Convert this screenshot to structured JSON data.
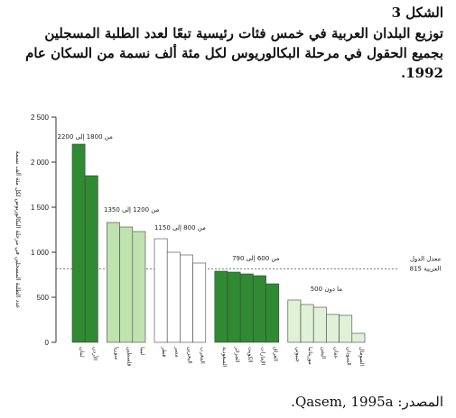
{
  "caption": {
    "figure_label": "الشكل 3",
    "line1": "توزيع البلدان العربية في خمس فئات رئيسية تبعًا لعدد الطلبة المسجلين",
    "line2": "بجميع الحقول في مرحلة البكالوريوس لكل مئة ألف نسمة من السكان عام",
    "line3": "1992."
  },
  "source": "المصدر: Qasem, 1995a.",
  "colors": {
    "dark_green": "#2f8a32",
    "light_green": "#bfe3ae",
    "pale_green": "#dff1d6",
    "white": "#ffffff",
    "reference_line": "#555555"
  },
  "chart_data": {
    "type": "bar",
    "ylabel": "عدد الطلبة المسجلين في مرحلة البكالوريوس لكل مئة ألف نسمة",
    "ylim": [
      0,
      2500
    ],
    "yticks": [
      0,
      500,
      1000,
      1500,
      2000,
      2500
    ],
    "ytick_labels": [
      "0",
      "500",
      "1 000",
      "1 500",
      "2 000",
      "2 500"
    ],
    "reference": {
      "value": 815,
      "label_line1": "معدل الدول",
      "label_line2": "العربية 815"
    },
    "groups": [
      {
        "label": "من 1800 إلى 2200",
        "fill": "dark_green",
        "categories": [
          "لبنان",
          "الأردن"
        ],
        "values": [
          2200,
          1850
        ]
      },
      {
        "label": "من 1200 إلى 1350",
        "fill": "light_green",
        "categories": [
          "سوريا",
          "فلسطين",
          "ليبيا"
        ],
        "values": [
          1330,
          1280,
          1230
        ]
      },
      {
        "label": "من 800 إلى 1150",
        "fill": "white",
        "categories": [
          "قطر",
          "مصر",
          "البحرين",
          "المغرب"
        ],
        "values": [
          1150,
          1000,
          970,
          880
        ]
      },
      {
        "label": "من 600 إلى 790",
        "fill": "dark_green",
        "categories": [
          "السعودية",
          "الجزائر",
          "الكويت",
          "الإمارات",
          "العراق"
        ],
        "values": [
          790,
          780,
          760,
          740,
          650
        ]
      },
      {
        "label": "ما دون 500",
        "fill": "pale_green",
        "categories": [
          "جيبوتي",
          "موريتانيا",
          "اليمن",
          "عمان",
          "السودان",
          "الصومال"
        ],
        "values": [
          470,
          420,
          390,
          310,
          300,
          100
        ]
      }
    ]
  }
}
